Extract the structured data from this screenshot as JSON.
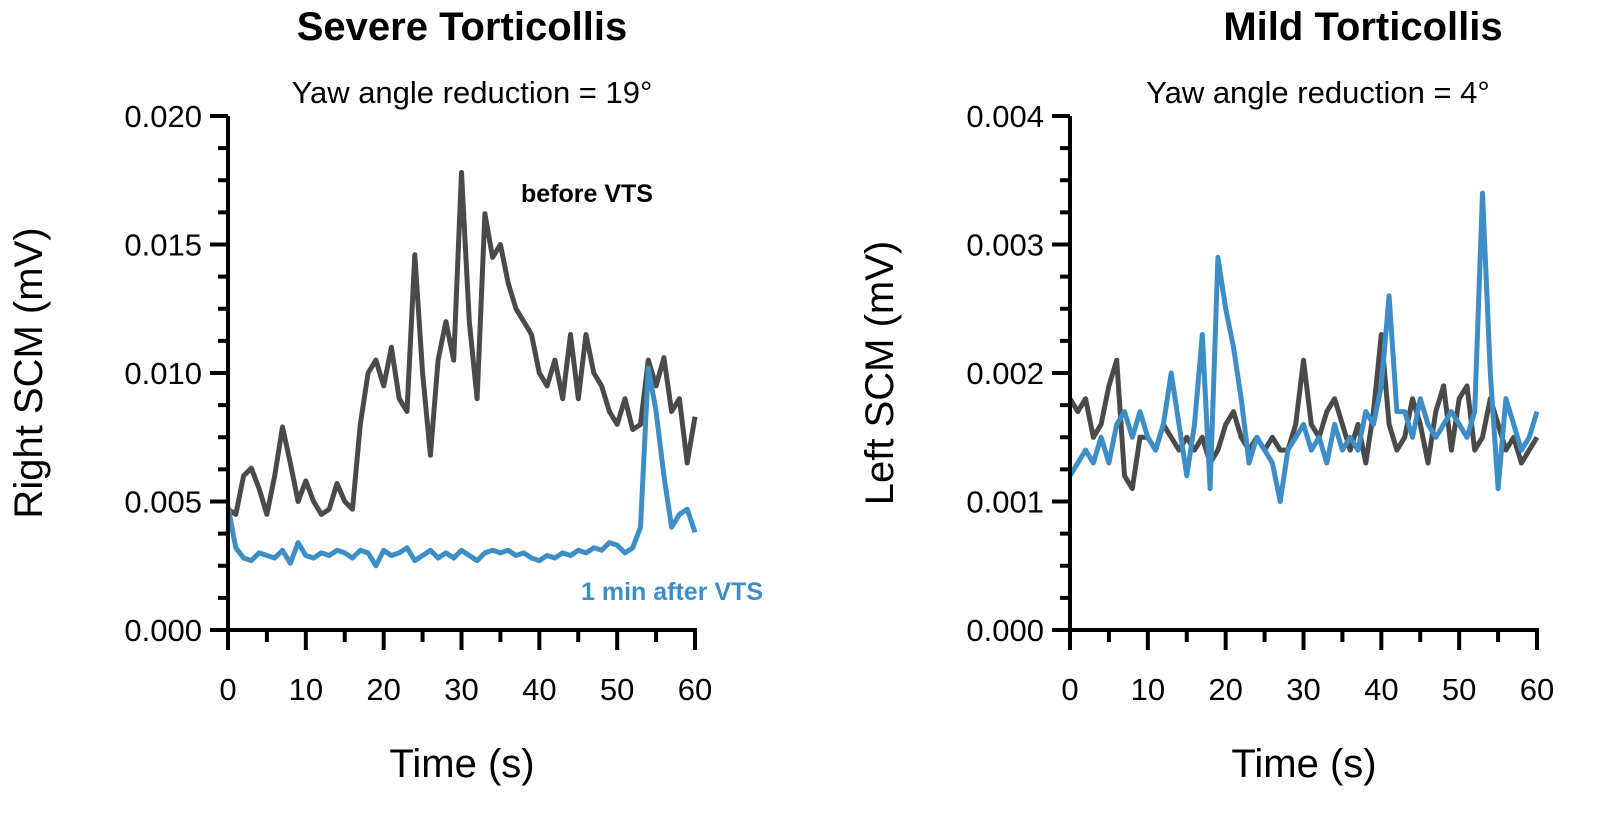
{
  "colors": {
    "before": "#4a4a4a",
    "after": "#3d8ec6",
    "axis": "#000000"
  },
  "chart_data": [
    {
      "type": "line",
      "title": "Severe Torticollis",
      "subtitle": "Yaw angle reduction = 19°",
      "xlabel": "Time (s)",
      "ylabel": "Right SCM (mV)",
      "xlim": [
        0,
        60
      ],
      "ylim": [
        0,
        0.02
      ],
      "xticks": [
        "0",
        "10",
        "20",
        "30",
        "40",
        "50",
        "60"
      ],
      "yticks": [
        "0.000",
        "0.005",
        "0.010",
        "0.015",
        "0.020"
      ],
      "x": [
        0,
        1,
        2,
        3,
        4,
        5,
        6,
        7,
        8,
        9,
        10,
        11,
        12,
        13,
        14,
        15,
        16,
        17,
        18,
        19,
        20,
        21,
        22,
        23,
        24,
        25,
        26,
        27,
        28,
        29,
        30,
        31,
        32,
        33,
        34,
        35,
        36,
        37,
        38,
        39,
        40,
        41,
        42,
        43,
        44,
        45,
        46,
        47,
        48,
        49,
        50,
        51,
        52,
        53,
        54,
        55,
        56,
        57,
        58,
        59,
        60
      ],
      "series": [
        {
          "name": "before VTS",
          "color": "#4a4a4a",
          "values": [
            0.0047,
            0.0045,
            0.006,
            0.0063,
            0.0055,
            0.0045,
            0.006,
            0.0079,
            0.0065,
            0.005,
            0.0058,
            0.005,
            0.0045,
            0.0047,
            0.0057,
            0.005,
            0.0047,
            0.008,
            0.01,
            0.0105,
            0.0095,
            0.011,
            0.009,
            0.0085,
            0.0146,
            0.01,
            0.0068,
            0.0105,
            0.012,
            0.0105,
            0.0178,
            0.012,
            0.009,
            0.0162,
            0.0145,
            0.015,
            0.0135,
            0.0125,
            0.012,
            0.0115,
            0.01,
            0.0095,
            0.0105,
            0.009,
            0.0115,
            0.009,
            0.0115,
            0.01,
            0.0095,
            0.0085,
            0.008,
            0.009,
            0.0078,
            0.008,
            0.0105,
            0.0095,
            0.0106,
            0.0085,
            0.009,
            0.0065,
            0.0083
          ]
        },
        {
          "name": "1 min after VTS",
          "color": "#3d8ec6",
          "values": [
            0.0048,
            0.0032,
            0.0028,
            0.0027,
            0.003,
            0.0029,
            0.0028,
            0.0031,
            0.0026,
            0.0034,
            0.0029,
            0.0028,
            0.003,
            0.0029,
            0.0031,
            0.003,
            0.0028,
            0.0031,
            0.003,
            0.0025,
            0.0031,
            0.0029,
            0.003,
            0.0032,
            0.0027,
            0.0029,
            0.0031,
            0.0028,
            0.003,
            0.0028,
            0.0031,
            0.0029,
            0.0027,
            0.003,
            0.0031,
            0.003,
            0.0031,
            0.0029,
            0.003,
            0.0028,
            0.0027,
            0.0029,
            0.0028,
            0.003,
            0.0029,
            0.0031,
            0.003,
            0.0032,
            0.0031,
            0.0034,
            0.0033,
            0.003,
            0.0032,
            0.004,
            0.0102,
            0.0085,
            0.006,
            0.004,
            0.0045,
            0.0047,
            0.0038
          ]
        }
      ],
      "annotations": [
        "before VTS",
        "1 min after VTS"
      ]
    },
    {
      "type": "line",
      "title": "Mild Torticollis",
      "subtitle": "Yaw angle reduction = 4°",
      "xlabel": "Time (s)",
      "ylabel": "Left SCM (mV)",
      "xlim": [
        0,
        60
      ],
      "ylim": [
        0,
        0.004
      ],
      "xticks": [
        "0",
        "10",
        "20",
        "30",
        "40",
        "50",
        "60"
      ],
      "yticks": [
        "0.000",
        "0.001",
        "0.002",
        "0.003",
        "0.004"
      ],
      "x": [
        0,
        1,
        2,
        3,
        4,
        5,
        6,
        7,
        8,
        9,
        10,
        11,
        12,
        13,
        14,
        15,
        16,
        17,
        18,
        19,
        20,
        21,
        22,
        23,
        24,
        25,
        26,
        27,
        28,
        29,
        30,
        31,
        32,
        33,
        34,
        35,
        36,
        37,
        38,
        39,
        40,
        41,
        42,
        43,
        44,
        45,
        46,
        47,
        48,
        49,
        50,
        51,
        52,
        53,
        54,
        55,
        56,
        57,
        58,
        59,
        60
      ],
      "series": [
        {
          "name": "before VTS",
          "color": "#4a4a4a",
          "values": [
            0.0018,
            0.0017,
            0.0018,
            0.0015,
            0.0016,
            0.0019,
            0.0021,
            0.0012,
            0.0011,
            0.0015,
            0.0015,
            0.0014,
            0.0016,
            0.0015,
            0.0014,
            0.0015,
            0.0014,
            0.0015,
            0.0013,
            0.0014,
            0.0016,
            0.0017,
            0.0015,
            0.0014,
            0.0015,
            0.0014,
            0.0015,
            0.0014,
            0.0014,
            0.0016,
            0.0021,
            0.0016,
            0.0015,
            0.0017,
            0.0018,
            0.0016,
            0.0014,
            0.0016,
            0.0013,
            0.0017,
            0.0023,
            0.0016,
            0.0014,
            0.0015,
            0.0018,
            0.0016,
            0.0013,
            0.0017,
            0.0019,
            0.0014,
            0.0018,
            0.0019,
            0.0014,
            0.0015,
            0.0018,
            0.0016,
            0.0014,
            0.0015,
            0.0013,
            0.0014,
            0.0015
          ]
        },
        {
          "name": "1 min after VTS",
          "color": "#3d8ec6",
          "values": [
            0.0012,
            0.0013,
            0.0014,
            0.0013,
            0.0015,
            0.0013,
            0.0016,
            0.0017,
            0.0015,
            0.0017,
            0.0015,
            0.0014,
            0.0016,
            0.002,
            0.0016,
            0.0012,
            0.0016,
            0.0023,
            0.0011,
            0.0029,
            0.0025,
            0.0022,
            0.0018,
            0.0013,
            0.0015,
            0.0014,
            0.0013,
            0.001,
            0.0014,
            0.0015,
            0.0016,
            0.0014,
            0.0015,
            0.0013,
            0.0016,
            0.0014,
            0.0015,
            0.0014,
            0.0017,
            0.0016,
            0.0019,
            0.0026,
            0.0017,
            0.0017,
            0.0015,
            0.0018,
            0.0016,
            0.0015,
            0.0016,
            0.0017,
            0.0016,
            0.0015,
            0.0017,
            0.0034,
            0.002,
            0.0011,
            0.0018,
            0.0016,
            0.0014,
            0.0015,
            0.0017
          ]
        }
      ]
    }
  ]
}
